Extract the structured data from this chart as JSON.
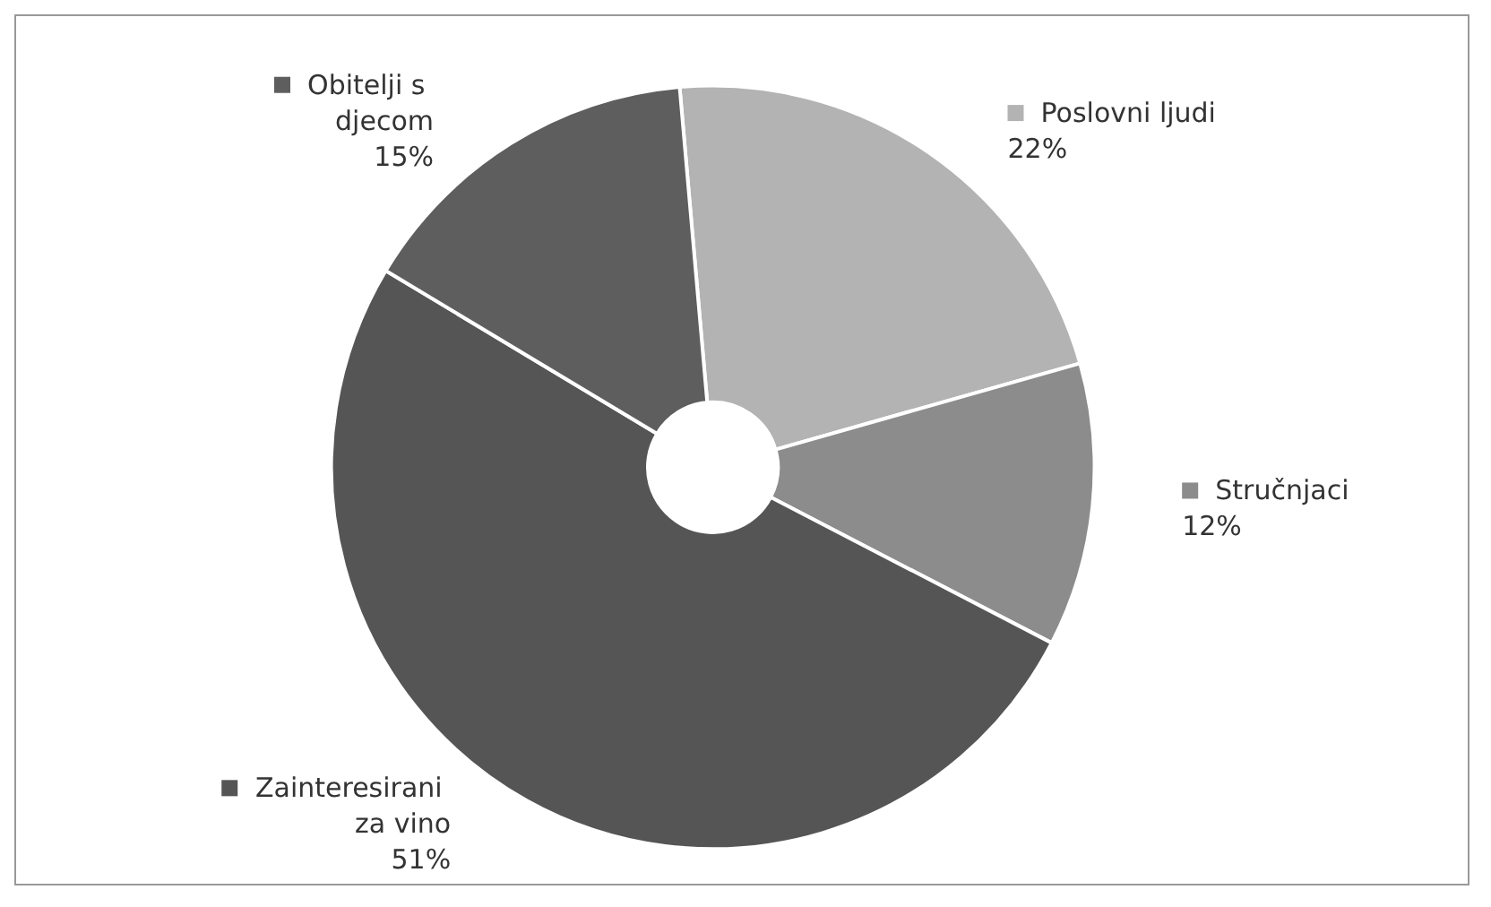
{
  "chart_data": {
    "type": "donut",
    "categories": [
      "Poslovni ljudi",
      "Stručnjaci",
      "Zainteresirani za vino",
      "Obitelji s djecom"
    ],
    "values": [
      22,
      12,
      51,
      15
    ],
    "value_labels": [
      "22%",
      "12%",
      "51%",
      "15%"
    ],
    "colors": [
      "#b3b3b3",
      "#8c8c8c",
      "#555555",
      "#5e5e5e"
    ],
    "legend": "right"
  }
}
